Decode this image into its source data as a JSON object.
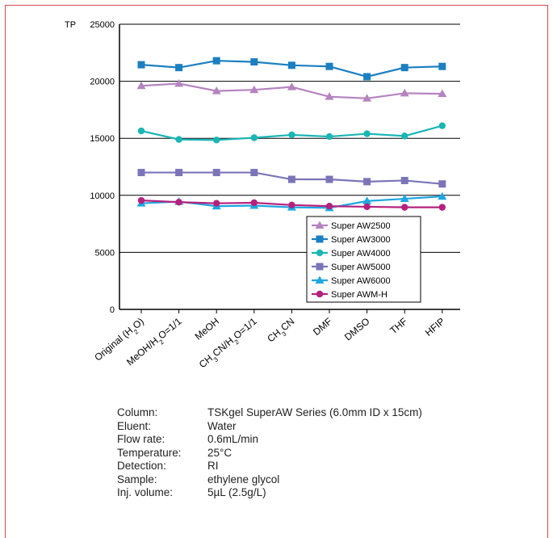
{
  "chart_data": {
    "type": "line",
    "ylabel": "TP",
    "ylim": [
      0,
      25000
    ],
    "yticks": [
      0,
      5000,
      10000,
      15000,
      20000,
      25000
    ],
    "grid": "horizontal",
    "legend_position": "inside-bottom-right",
    "categories": [
      {
        "id": "original",
        "parts": [
          {
            "t": "Original (H"
          },
          {
            "t": "2",
            "sub": true
          },
          {
            "t": "O)"
          }
        ]
      },
      {
        "id": "meoh-h2o",
        "parts": [
          {
            "t": "MeOH/H"
          },
          {
            "t": "2",
            "sub": true
          },
          {
            "t": "O=1/1"
          }
        ]
      },
      {
        "id": "meoh",
        "parts": [
          {
            "t": "MeOH"
          }
        ]
      },
      {
        "id": "ch3cn-h2o",
        "parts": [
          {
            "t": "CH"
          },
          {
            "t": "3",
            "sub": true
          },
          {
            "t": "CN/H"
          },
          {
            "t": "2",
            "sub": true
          },
          {
            "t": "O=1/1"
          }
        ]
      },
      {
        "id": "ch3cn",
        "parts": [
          {
            "t": "CH"
          },
          {
            "t": "3",
            "sub": true
          },
          {
            "t": "CN"
          }
        ]
      },
      {
        "id": "dmf",
        "parts": [
          {
            "t": "DMF"
          }
        ]
      },
      {
        "id": "dmso",
        "parts": [
          {
            "t": "DMSO"
          }
        ]
      },
      {
        "id": "thf",
        "parts": [
          {
            "t": "THF"
          }
        ]
      },
      {
        "id": "hfip",
        "parts": [
          {
            "t": "HFIP"
          }
        ]
      }
    ],
    "series": [
      {
        "name": "Super AW2500",
        "color": "#b584c0",
        "marker": "triangle",
        "values": [
          19600,
          19800,
          19150,
          19250,
          19500,
          18650,
          18500,
          18950,
          18900
        ]
      },
      {
        "name": "Super AW3000",
        "color": "#1b7fc1",
        "marker": "square",
        "values": [
          21450,
          21200,
          21800,
          21700,
          21400,
          21300,
          20400,
          21200,
          21300
        ]
      },
      {
        "name": "Super AW4000",
        "color": "#1ab5b5",
        "marker": "circle",
        "values": [
          15650,
          14900,
          14850,
          15050,
          15300,
          15150,
          15400,
          15200,
          16100
        ]
      },
      {
        "name": "Super AW5000",
        "color": "#7b74b8",
        "marker": "square",
        "values": [
          12000,
          12000,
          12000,
          12000,
          11400,
          11400,
          11200,
          11300,
          11000
        ]
      },
      {
        "name": "Super AW6000",
        "color": "#1ea7e1",
        "marker": "triangle",
        "values": [
          9300,
          9450,
          9050,
          9100,
          8950,
          8900,
          9500,
          9700,
          9900
        ]
      },
      {
        "name": "Super AWM-H",
        "color": "#b5217e",
        "marker": "circle",
        "values": [
          9550,
          9400,
          9300,
          9350,
          9150,
          9050,
          9000,
          8950,
          8950
        ]
      }
    ]
  },
  "conditions": [
    {
      "label": "Column:",
      "value": "TSKgel SuperAW Series (6.0mm ID x 15cm)"
    },
    {
      "label": "Eluent:",
      "value": "Water"
    },
    {
      "label": "Flow rate:",
      "value": "0.6mL/min"
    },
    {
      "label": "Temperature:",
      "value": "25°C"
    },
    {
      "label": "Detection:",
      "value": "RI"
    },
    {
      "label": "Sample:",
      "value": "ethylene glycol"
    },
    {
      "label": "Inj. volume:",
      "value": "5µL (2.5g/L)"
    }
  ]
}
